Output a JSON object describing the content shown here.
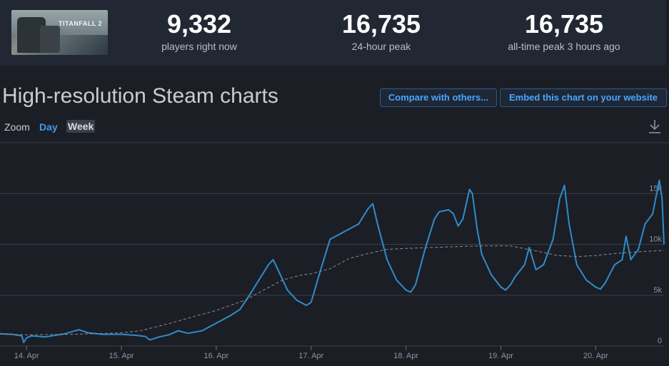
{
  "stats": [
    {
      "value": "9,332",
      "label": "players right now"
    },
    {
      "value": "16,735",
      "label": "24-hour peak"
    },
    {
      "value": "16,735",
      "label": "all-time peak 3 hours ago"
    }
  ],
  "game": {
    "thumbnail_text": "TITANFALL 2"
  },
  "heading": "High-resolution Steam charts",
  "buttons": {
    "compare": "Compare with others...",
    "embed": "Embed this chart on your website"
  },
  "zoom": {
    "label": "Zoom",
    "day": "Day",
    "week": "Week",
    "selected": "Week"
  },
  "icons": {
    "download": "download-icon"
  },
  "colors": {
    "line": "#2f8ccc",
    "average": "#8c8f94",
    "grid": "#3a3f48",
    "background": "#1b1e25"
  },
  "chart_data": {
    "type": "line",
    "x_unit": "day (April)",
    "xlim": [
      13.72,
      20.72
    ],
    "ylim": [
      0,
      20000
    ],
    "x_ticks": [
      {
        "x": 14,
        "label": "14. Apr"
      },
      {
        "x": 15,
        "label": "15. Apr"
      },
      {
        "x": 16,
        "label": "16. Apr"
      },
      {
        "x": 17,
        "label": "17. Apr"
      },
      {
        "x": 18,
        "label": "18. Apr"
      },
      {
        "x": 19,
        "label": "19. Apr"
      },
      {
        "x": 20,
        "label": "20. Apr"
      }
    ],
    "y_ticks": [
      {
        "y": 0,
        "label": "0"
      },
      {
        "y": 5000,
        "label": "5k"
      },
      {
        "y": 10000,
        "label": "10k"
      },
      {
        "y": 15000,
        "label": "15k"
      }
    ],
    "grid": true,
    "legend": "none",
    "series": [
      {
        "style": "solid",
        "points": [
          [
            13.72,
            1200
          ],
          [
            13.85,
            1150
          ],
          [
            13.95,
            1000
          ],
          [
            13.97,
            350
          ],
          [
            14.0,
            800
          ],
          [
            14.05,
            1000
          ],
          [
            14.2,
            900
          ],
          [
            14.4,
            1200
          ],
          [
            14.55,
            1600
          ],
          [
            14.65,
            1300
          ],
          [
            14.8,
            1150
          ],
          [
            15.0,
            1150
          ],
          [
            15.15,
            1050
          ],
          [
            15.25,
            950
          ],
          [
            15.3,
            600
          ],
          [
            15.4,
            900
          ],
          [
            15.5,
            1100
          ],
          [
            15.6,
            1500
          ],
          [
            15.7,
            1250
          ],
          [
            15.85,
            1500
          ],
          [
            15.95,
            2000
          ],
          [
            16.05,
            2500
          ],
          [
            16.15,
            3000
          ],
          [
            16.25,
            3600
          ],
          [
            16.35,
            5000
          ],
          [
            16.45,
            6500
          ],
          [
            16.55,
            8000
          ],
          [
            16.6,
            8500
          ],
          [
            16.65,
            7500
          ],
          [
            16.75,
            5500
          ],
          [
            16.85,
            4500
          ],
          [
            16.95,
            4000
          ],
          [
            17.0,
            4300
          ],
          [
            17.1,
            7500
          ],
          [
            17.2,
            10500
          ],
          [
            17.3,
            11000
          ],
          [
            17.4,
            11500
          ],
          [
            17.5,
            12000
          ],
          [
            17.6,
            13500
          ],
          [
            17.65,
            14000
          ],
          [
            17.7,
            12000
          ],
          [
            17.8,
            8500
          ],
          [
            17.9,
            6500
          ],
          [
            18.0,
            5500
          ],
          [
            18.05,
            5300
          ],
          [
            18.1,
            6000
          ],
          [
            18.2,
            9500
          ],
          [
            18.3,
            12500
          ],
          [
            18.35,
            13200
          ],
          [
            18.45,
            13400
          ],
          [
            18.5,
            13000
          ],
          [
            18.55,
            11800
          ],
          [
            18.6,
            12500
          ],
          [
            18.67,
            15400
          ],
          [
            18.7,
            15000
          ],
          [
            18.75,
            11500
          ],
          [
            18.8,
            9000
          ],
          [
            18.9,
            7000
          ],
          [
            19.0,
            5800
          ],
          [
            19.05,
            5500
          ],
          [
            19.1,
            6000
          ],
          [
            19.15,
            6800
          ],
          [
            19.25,
            8000
          ],
          [
            19.3,
            9700
          ],
          [
            19.37,
            7500
          ],
          [
            19.45,
            8000
          ],
          [
            19.55,
            10500
          ],
          [
            19.62,
            14500
          ],
          [
            19.67,
            15800
          ],
          [
            19.72,
            12000
          ],
          [
            19.8,
            8000
          ],
          [
            19.9,
            6500
          ],
          [
            20.0,
            5800
          ],
          [
            20.05,
            5600
          ],
          [
            20.1,
            6200
          ],
          [
            20.2,
            8000
          ],
          [
            20.28,
            8500
          ],
          [
            20.32,
            10800
          ],
          [
            20.37,
            8500
          ],
          [
            20.45,
            9500
          ],
          [
            20.52,
            12000
          ],
          [
            20.6,
            13000
          ],
          [
            20.67,
            16300
          ],
          [
            20.7,
            14500
          ],
          [
            20.72,
            10000
          ]
        ]
      },
      {
        "style": "dashed",
        "points": [
          [
            13.72,
            1200
          ],
          [
            14.0,
            1100
          ],
          [
            14.5,
            1150
          ],
          [
            15.0,
            1300
          ],
          [
            15.2,
            1500
          ],
          [
            15.5,
            2200
          ],
          [
            15.8,
            3000
          ],
          [
            16.0,
            3500
          ],
          [
            16.3,
            4500
          ],
          [
            16.5,
            5500
          ],
          [
            16.7,
            6500
          ],
          [
            16.9,
            7000
          ],
          [
            17.0,
            7100
          ],
          [
            17.2,
            7600
          ],
          [
            17.4,
            8600
          ],
          [
            17.6,
            9100
          ],
          [
            17.8,
            9500
          ],
          [
            18.0,
            9600
          ],
          [
            18.3,
            9700
          ],
          [
            18.6,
            9800
          ],
          [
            18.9,
            9850
          ],
          [
            19.1,
            9850
          ],
          [
            19.4,
            9300
          ],
          [
            19.6,
            8900
          ],
          [
            19.8,
            8800
          ],
          [
            20.0,
            8900
          ],
          [
            20.2,
            9100
          ],
          [
            20.5,
            9300
          ],
          [
            20.72,
            9400
          ]
        ]
      }
    ]
  }
}
